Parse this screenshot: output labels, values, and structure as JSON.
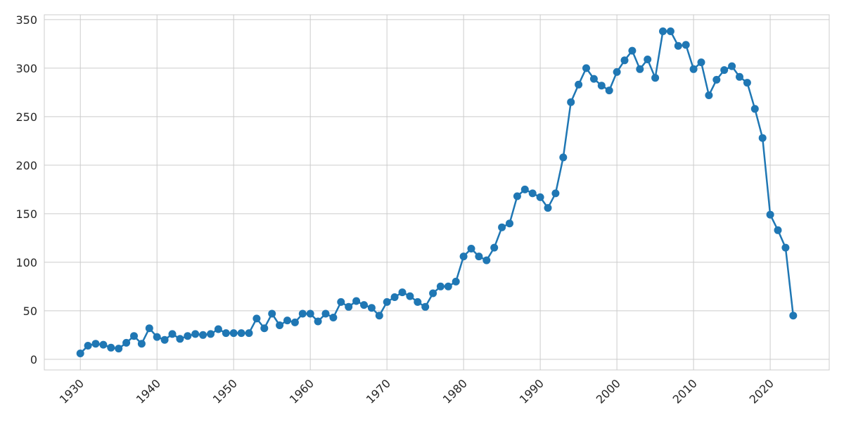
{
  "chart_data": {
    "type": "line",
    "title": "",
    "xlabel": "",
    "ylabel": "",
    "xlim": [
      1925.3,
      1927.7
    ],
    "ylim": [
      -11,
      355
    ],
    "grid": true,
    "legend": "none",
    "x_ticks": [
      1930,
      1940,
      1950,
      1960,
      1970,
      1980,
      1990,
      2000,
      2010,
      2020
    ],
    "y_ticks": [
      0,
      50,
      100,
      150,
      200,
      250,
      300,
      350
    ],
    "colors": {
      "series": "#1f77b4",
      "grid": "#cccccc",
      "text": "#262626"
    },
    "x": [
      1930,
      1931,
      1932,
      1933,
      1934,
      1935,
      1936,
      1937,
      1938,
      1939,
      1940,
      1941,
      1942,
      1943,
      1944,
      1945,
      1946,
      1947,
      1948,
      1949,
      1950,
      1951,
      1952,
      1953,
      1954,
      1955,
      1956,
      1957,
      1958,
      1959,
      1960,
      1961,
      1962,
      1963,
      1964,
      1965,
      1966,
      1967,
      1968,
      1969,
      1970,
      1971,
      1972,
      1973,
      1974,
      1975,
      1976,
      1977,
      1978,
      1979,
      1980,
      1981,
      1982,
      1983,
      1984,
      1985,
      1986,
      1987,
      1988,
      1989,
      1990,
      1991,
      1992,
      1993,
      1994,
      1995,
      1996,
      1997,
      1998,
      1999,
      2000,
      2001,
      2002,
      2003,
      2004,
      2005,
      2006,
      2007,
      2008,
      2009,
      2010,
      2011,
      2012,
      2013,
      2014,
      2015,
      2016,
      2017,
      2018,
      2019,
      2020,
      2021,
      2022,
      2023
    ],
    "series": [
      {
        "values": [
          6,
          14,
          16,
          15,
          12,
          11,
          17,
          24,
          16,
          32,
          23,
          20,
          26,
          21,
          24,
          26,
          25,
          26,
          31,
          27,
          27,
          27,
          27,
          42,
          32,
          47,
          35,
          40,
          38,
          47,
          47,
          39,
          47,
          43,
          59,
          54,
          60,
          56,
          53,
          45,
          59,
          64,
          69,
          65,
          59,
          54,
          68,
          75,
          75,
          80,
          106,
          114,
          106,
          102,
          115,
          136,
          140,
          168,
          175,
          171,
          167,
          156,
          171,
          208,
          265,
          283,
          300,
          289,
          282,
          277,
          296,
          308,
          318,
          299,
          309,
          290,
          338,
          338,
          323,
          324,
          299,
          306,
          272,
          288,
          298,
          302,
          291,
          285,
          258,
          228,
          149,
          133,
          115,
          45
        ]
      }
    ]
  }
}
